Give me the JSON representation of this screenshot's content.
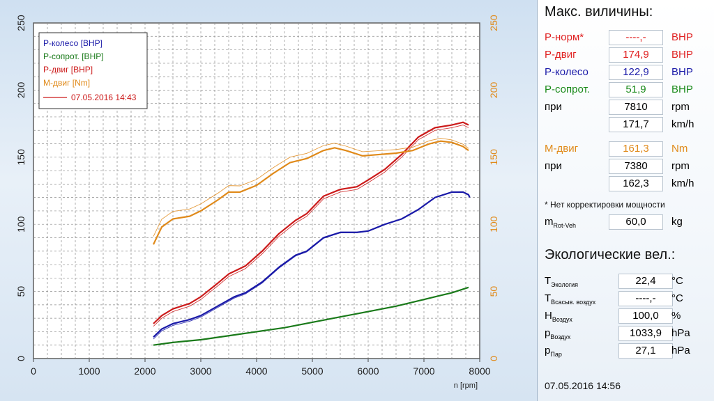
{
  "chart_data": {
    "type": "line",
    "xlabel": "n [rpm]",
    "xlim": [
      0,
      8000
    ],
    "ylim_left": [
      0,
      250
    ],
    "ylim_right": [
      0,
      250
    ],
    "xticks": [
      0,
      1000,
      2000,
      3000,
      4000,
      5000,
      6000,
      7000,
      8000
    ],
    "yticks_left": [
      0,
      50,
      100,
      150,
      200,
      250
    ],
    "yticks_right": [
      0,
      50,
      100,
      150,
      200,
      250
    ],
    "grid": true,
    "legend_position": "top-left",
    "legend": [
      "P-колесо [BHP]",
      "P-сопрот. [BHP]",
      "P-двиг [BHP]",
      "M-двиг [Nm]"
    ],
    "legend_run": "07.05.2016 14:43",
    "series": [
      {
        "name": "P-колесо [BHP]",
        "color": "#1a1aa8",
        "x": [
          2150,
          2300,
          2500,
          2800,
          3000,
          3300,
          3600,
          3800,
          4100,
          4400,
          4700,
          4900,
          5200,
          5500,
          5800,
          6000,
          6300,
          6600,
          6900,
          7200,
          7500,
          7700,
          7800,
          7820
        ],
        "y": [
          16,
          22,
          26,
          29,
          32,
          39,
          46,
          49,
          57,
          68,
          77,
          80,
          90,
          94,
          94,
          95,
          100,
          104,
          111,
          120,
          124,
          124,
          122,
          120
        ]
      },
      {
        "name": "P-сопрот. [BHP]",
        "color": "#1a7a1a",
        "x": [
          2150,
          2500,
          3000,
          3500,
          4000,
          4500,
          5000,
          5500,
          6000,
          6500,
          7000,
          7500,
          7800
        ],
        "y": [
          10,
          12,
          14,
          17,
          20,
          23,
          27,
          31,
          35,
          39,
          44,
          49,
          53
        ]
      },
      {
        "name": "P-двиг [BHP]",
        "color": "#cc1a1a",
        "x": [
          2150,
          2300,
          2500,
          2800,
          3000,
          3300,
          3500,
          3800,
          4100,
          4400,
          4700,
          4900,
          5200,
          5500,
          5800,
          6000,
          6300,
          6600,
          6900,
          7200,
          7500,
          7700,
          7800
        ],
        "y": [
          26,
          32,
          37,
          41,
          46,
          56,
          63,
          69,
          80,
          93,
          103,
          108,
          121,
          126,
          128,
          133,
          141,
          152,
          165,
          172,
          174,
          176,
          174
        ]
      },
      {
        "name": "M-двиг [Nm]",
        "color": "#e08a1a",
        "x": [
          2150,
          2300,
          2500,
          2800,
          3000,
          3300,
          3500,
          3700,
          4000,
          4300,
          4600,
          4900,
          5200,
          5400,
          5600,
          5900,
          6200,
          6500,
          6800,
          7100,
          7300,
          7500,
          7700,
          7800
        ],
        "y": [
          85,
          98,
          104,
          106,
          110,
          118,
          124,
          124,
          129,
          138,
          146,
          149,
          155,
          157,
          155,
          151,
          152,
          153,
          155,
          160,
          162,
          161,
          158,
          155
        ]
      }
    ]
  },
  "panel": {
    "title": "Макс. виличины:",
    "rows": [
      {
        "label": "P-норм*",
        "value": "----,-",
        "unit": "BHP",
        "color": "#e02020"
      },
      {
        "label": "P-двиг",
        "value": "174,9",
        "unit": "BHP",
        "color": "#e02020"
      },
      {
        "label": "P-колесо",
        "value": "122,9",
        "unit": "BHP",
        "color": "#1a1aa8"
      },
      {
        "label": "P-сопрот.",
        "value": "51,9",
        "unit": "BHP",
        "color": "#1a8a1a"
      },
      {
        "label": "при",
        "value": "7810",
        "unit": "rpm",
        "color": "#111111"
      },
      {
        "label": "",
        "value": "171,7",
        "unit": "km/h",
        "color": "#111111"
      },
      {
        "label": "M-двиг",
        "value": "161,3",
        "unit": "Nm",
        "color": "#e08a1a"
      },
      {
        "label": "при",
        "value": "7380",
        "unit": "rpm",
        "color": "#111111"
      },
      {
        "label": "",
        "value": "162,3",
        "unit": "km/h",
        "color": "#111111"
      }
    ],
    "note": "* Нет корректировки мощности",
    "mass": {
      "label": "m",
      "sub": "Rot-Veh",
      "value": "60,0",
      "unit": "kg"
    },
    "eco_title": "Экологические вел.:",
    "eco": [
      {
        "label": "T",
        "sub": "Экология",
        "value": "22,4",
        "unit": "°C"
      },
      {
        "label": "T",
        "sub": "Всасыв. воздух",
        "value": "----,-",
        "unit": "°C"
      },
      {
        "label": "H",
        "sub": "Воздух",
        "value": "100,0",
        "unit": "%"
      },
      {
        "label": "p",
        "sub": "Воздух",
        "value": "1033,9",
        "unit": "hPa"
      },
      {
        "label": "p",
        "sub": "Пар",
        "value": "27,1",
        "unit": "hPa"
      }
    ],
    "timestamp": "07.05.2016  14:56"
  }
}
